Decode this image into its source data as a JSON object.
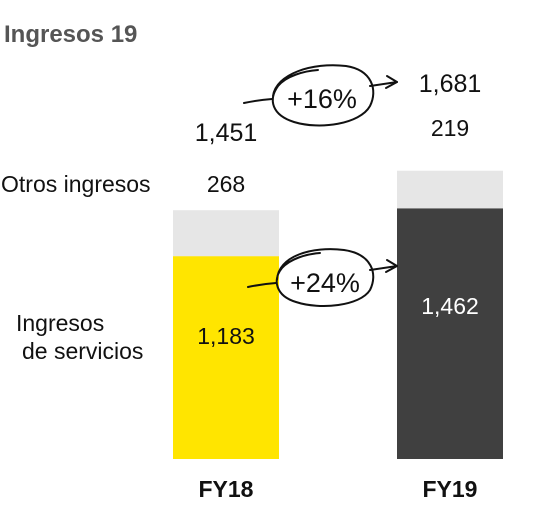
{
  "chart_data": {
    "type": "bar",
    "stacked": true,
    "title": "Ingresos 19",
    "categories": [
      "FY18",
      "FY19"
    ],
    "series": [
      {
        "name": "Ingresos de servicios",
        "values": [
          1183,
          1462
        ],
        "colors": [
          "#FFE500",
          "#404040"
        ],
        "label_colors": [
          "#111111",
          "#ffffff"
        ]
      },
      {
        "name": "Otros ingresos",
        "values": [
          268,
          219
        ],
        "colors": [
          "#E6E6E6",
          "#E6E6E6"
        ],
        "label_colors": [
          "#111111",
          "#111111"
        ]
      }
    ],
    "totals": [
      1451,
      1681
    ],
    "value_labels": {
      "services": [
        "1,183",
        "1,462"
      ],
      "other": [
        "268",
        "219"
      ],
      "totals": [
        "1,451",
        "1,681"
      ]
    },
    "legend": {
      "other": "Otros ingresos",
      "services_line1": "Ingresos",
      "services_line2": "de servicios"
    },
    "annotations": {
      "total_growth": "+16%",
      "services_growth": "+24%"
    },
    "ylim": [
      0,
      1750
    ]
  }
}
